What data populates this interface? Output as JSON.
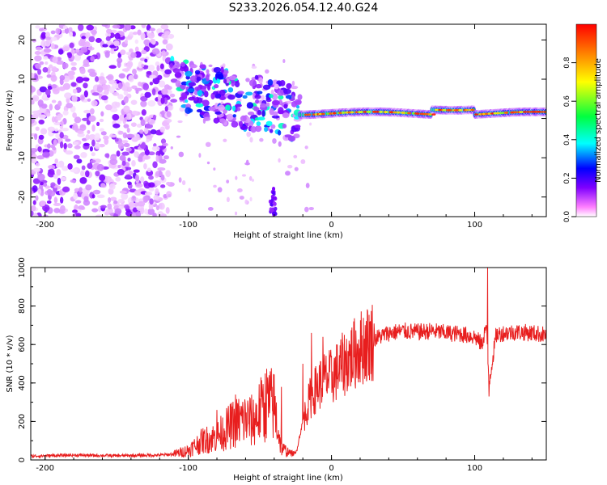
{
  "title": "S233.2026.054.12.40.G24",
  "colors": {
    "snr_line": "#e81e1e",
    "frame": "#000000"
  },
  "chart_data": [
    {
      "type": "heatmap",
      "name": "spectrogram",
      "xlabel": "Height of straight line (km)",
      "ylabel": "Frequency (Hz)",
      "xlim": [
        -210,
        150
      ],
      "ylim": [
        -25,
        24
      ],
      "xticks": [
        -200,
        -100,
        0,
        100
      ],
      "yticks": [
        -20,
        -10,
        0,
        10,
        20
      ],
      "regions": [
        {
          "x": [
            -210,
            -112
          ],
          "freq": [
            -25,
            24
          ],
          "level": 0.05,
          "description": "noise"
        },
        {
          "x": [
            -112,
            -25
          ],
          "freq": [
            -5,
            12
          ],
          "level": 0.25
        },
        {
          "x": [
            -45,
            -38
          ],
          "freq": [
            -24,
            -17
          ],
          "level": 0.15
        },
        {
          "x": [
            -20,
            150
          ],
          "freq": [
            0,
            3
          ],
          "level": 0.95
        }
      ],
      "colorbar": {
        "label": "Normalized spectral amplitude",
        "range": [
          0.0,
          1.0
        ],
        "ticks": [
          "0.0",
          "0.2",
          "0.4",
          "0.6",
          "0.8"
        ],
        "colors": [
          "#ffffff",
          "#ff00ff",
          "#0000ff",
          "#00ffff",
          "#00ff00",
          "#ffff00",
          "#ff0000"
        ]
      }
    },
    {
      "type": "line",
      "name": "snr",
      "xlabel": "Height of straight line (km)",
      "ylabel": "SNR (10 * v/v)",
      "xlim": [
        -210,
        150
      ],
      "ylim": [
        0,
        1000
      ],
      "xticks": [
        -200,
        -100,
        0,
        100
      ],
      "yticks": [
        0,
        200,
        400,
        600,
        800,
        1000
      ],
      "series": [
        {
          "name": "SNR",
          "x": [
            -210,
            -180,
            -150,
            -120,
            -110,
            -100,
            -90,
            -80,
            -75,
            -70,
            -65,
            -60,
            -55,
            -50,
            -45,
            -40,
            -35,
            -30,
            -25,
            -20,
            -15,
            -10,
            -5,
            0,
            10,
            20,
            30,
            40,
            50,
            60,
            70,
            80,
            90,
            100,
            105,
            108,
            110,
            115,
            120,
            130,
            140,
            150
          ],
          "y": [
            20,
            25,
            22,
            25,
            30,
            50,
            100,
            120,
            150,
            180,
            200,
            210,
            200,
            250,
            300,
            280,
            60,
            40,
            30,
            200,
            320,
            380,
            420,
            430,
            510,
            580,
            630,
            660,
            670,
            665,
            670,
            660,
            655,
            640,
            600,
            700,
            400,
            650,
            660,
            665,
            660,
            650
          ],
          "spikes": [
            {
              "x": -80,
              "y": 260
            },
            {
              "x": -67,
              "y": 340
            },
            {
              "x": -48,
              "y": 360
            },
            {
              "x": -35,
              "y": 380
            },
            {
              "x": -20,
              "y": 500
            },
            {
              "x": -14,
              "y": 660
            },
            {
              "x": -6,
              "y": 640
            },
            {
              "x": 109,
              "y": 1000
            },
            {
              "x": 110,
              "y": 330
            }
          ]
        }
      ]
    }
  ]
}
